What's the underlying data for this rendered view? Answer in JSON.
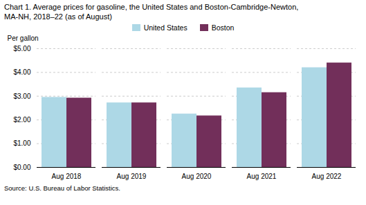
{
  "chart_data": {
    "type": "bar",
    "title": "Chart 1. Average prices for gasoline, the United States and Boston-Cambridge-Newton,\nMA-NH, 2018–22 (as of August)",
    "ylabel": "Per gallon",
    "source": "Source: U.S. Bureau of Labor Statistics.",
    "categories": [
      "Aug 2018",
      "Aug 2019",
      "Aug 2020",
      "Aug 2021",
      "Aug 2022"
    ],
    "series": [
      {
        "name": "United States",
        "color": "#ADD8E6",
        "values": [
          2.95,
          2.72,
          2.25,
          3.35,
          4.2
        ]
      },
      {
        "name": "Boston",
        "color": "#722F5A",
        "values": [
          2.92,
          2.72,
          2.17,
          3.15,
          4.4
        ]
      }
    ],
    "ylim": [
      0,
      5.0
    ],
    "yticks": [
      {
        "value": 0.0,
        "label": "$0.00"
      },
      {
        "value": 1.0,
        "label": "$1.00"
      },
      {
        "value": 2.0,
        "label": "$2.00"
      },
      {
        "value": 3.0,
        "label": "$3.00"
      },
      {
        "value": 4.0,
        "label": "$4.00"
      },
      {
        "value": 5.0,
        "label": "$5.00"
      }
    ],
    "grid": true,
    "legend": "top"
  }
}
